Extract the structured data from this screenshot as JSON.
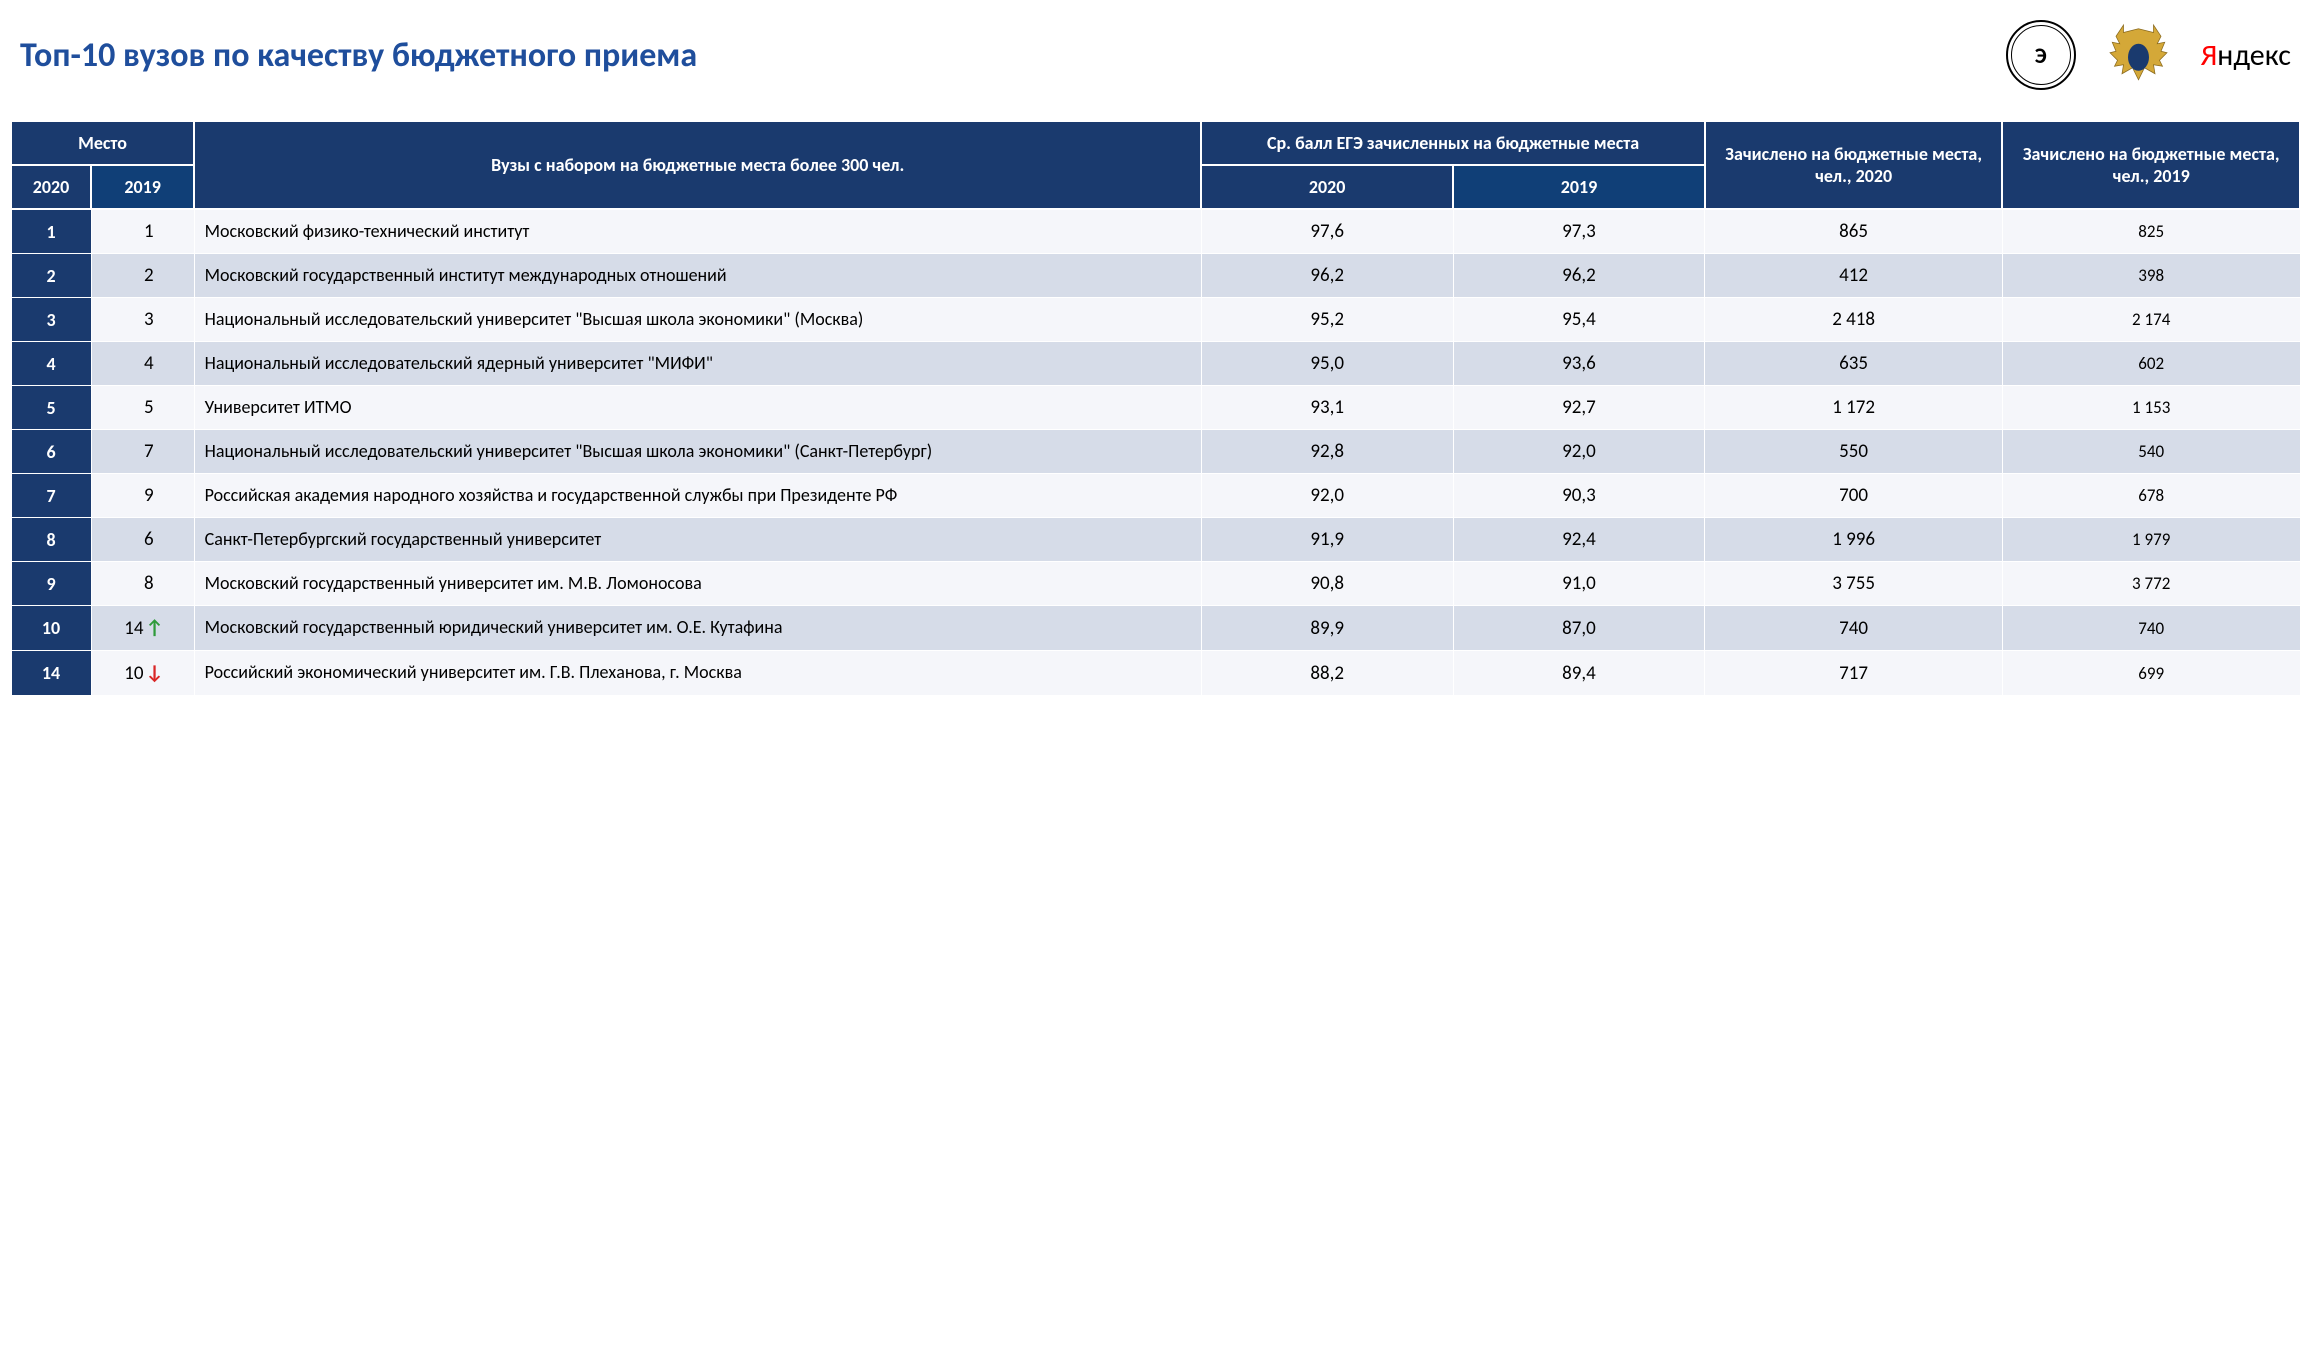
{
  "title": "Топ-10 вузов по качеству бюджетного приема",
  "title_color": "#1f4e9c",
  "logos": {
    "hse_label": "Э",
    "yandex_red": "Я",
    "yandex_rest": "ндекс"
  },
  "table": {
    "type": "table",
    "colors": {
      "dark_blue": "#1a3a6e",
      "light_blue": "#103f77",
      "alt_even": "#d6dce8",
      "alt_odd": "#f5f6fa",
      "text_dark": "#000000"
    },
    "column_widths_pct": [
      3.5,
      4.5,
      44,
      11,
      11,
      13,
      13
    ],
    "header": {
      "mesto": "Место",
      "name": "Вузы с набором на бюджетные места более 300 чел.",
      "scores": "Ср. балл ЕГЭ зачисленных на бюджетные места",
      "enrolled2020": "Зачислено на бюджетные места, чел., 2020",
      "enrolled2019": "Зачислено на бюджетные места, чел., 2019",
      "y2020": "2020",
      "y2019": "2019"
    },
    "rows": [
      {
        "rank2020": "1",
        "rank2019": "1",
        "arrow": "",
        "name": "Московский физико-технический институт",
        "s2020": "97,6",
        "s2019": "97,3",
        "e2020": "865",
        "e2019": "825"
      },
      {
        "rank2020": "2",
        "rank2019": "2",
        "arrow": "",
        "name": "Московский государственный институт международных отношений",
        "s2020": "96,2",
        "s2019": "96,2",
        "e2020": "412",
        "e2019": "398"
      },
      {
        "rank2020": "3",
        "rank2019": "3",
        "arrow": "",
        "name": "Национальный исследовательский университет \"Высшая школа экономики\" (Москва)",
        "s2020": "95,2",
        "s2019": "95,4",
        "e2020": "2 418",
        "e2019": "2 174"
      },
      {
        "rank2020": "4",
        "rank2019": "4",
        "arrow": "",
        "name": "Национальный исследовательский ядерный университет \"МИФИ\"",
        "s2020": "95,0",
        "s2019": "93,6",
        "e2020": "635",
        "e2019": "602"
      },
      {
        "rank2020": "5",
        "rank2019": "5",
        "arrow": "",
        "name": "Университет ИТМО",
        "s2020": "93,1",
        "s2019": "92,7",
        "e2020": "1 172",
        "e2019": "1 153"
      },
      {
        "rank2020": "6",
        "rank2019": "7",
        "arrow": "",
        "name": "Национальный исследовательский университет \"Высшая школа экономики\" (Санкт-Петербург)",
        "s2020": "92,8",
        "s2019": "92,0",
        "e2020": "550",
        "e2019": "540"
      },
      {
        "rank2020": "7",
        "rank2019": "9",
        "arrow": "",
        "name": "Российская академия народного хозяйства и государственной службы при Президенте РФ",
        "s2020": "92,0",
        "s2019": "90,3",
        "e2020": "700",
        "e2019": "678"
      },
      {
        "rank2020": "8",
        "rank2019": "6",
        "arrow": "",
        "name": "Санкт-Петербургский государственный университет",
        "s2020": "91,9",
        "s2019": "92,4",
        "e2020": "1 996",
        "e2019": "1 979"
      },
      {
        "rank2020": "9",
        "rank2019": "8",
        "arrow": "",
        "name": "Московский государственный университет им. М.В. Ломоносова",
        "s2020": "90,8",
        "s2019": "91,0",
        "e2020": "3 755",
        "e2019": "3 772"
      },
      {
        "rank2020": "10",
        "rank2019": "14",
        "arrow": "up",
        "name": "Московский государственный юридический университет им. О.Е. Кутафина",
        "s2020": "89,9",
        "s2019": "87,0",
        "e2020": "740",
        "e2019": "740"
      },
      {
        "rank2020": "14",
        "rank2019": "10",
        "arrow": "down",
        "name": "Российский экономический университет им. Г.В. Плеханова, г. Москва",
        "s2020": "88,2",
        "s2019": "89,4",
        "e2020": "717",
        "e2019": "699"
      }
    ]
  }
}
